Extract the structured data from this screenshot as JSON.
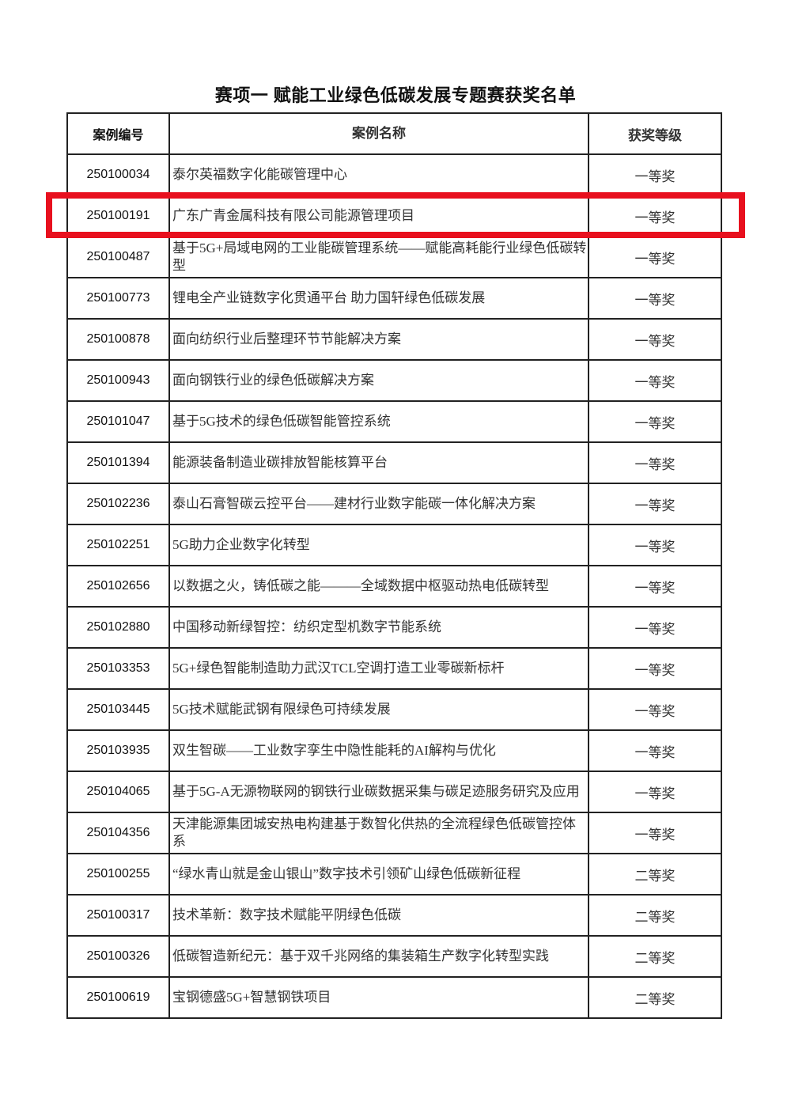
{
  "title": "赛项一  赋能工业绿色低碳发展专题赛获奖名单",
  "headers": [
    "案例编号",
    "案例名称",
    "获奖等级"
  ],
  "highlight_color": "#e8101e",
  "highlighted_row_id": "250100191",
  "rows": [
    {
      "id": "250100034",
      "name": "泰尔英福数字化能碳管理中心",
      "award": "一等奖"
    },
    {
      "id": "250100191",
      "name": "广东广青金属科技有限公司能源管理项目",
      "award": "一等奖"
    },
    {
      "id": "250100487",
      "name": "基于5G+局域电网的工业能碳管理系统——赋能高耗能行业绿色低碳转型",
      "award": "一等奖"
    },
    {
      "id": "250100773",
      "name": "锂电全产业链数字化贯通平台 助力国轩绿色低碳发展",
      "award": "一等奖"
    },
    {
      "id": "250100878",
      "name": "面向纺织行业后整理环节节能解决方案",
      "award": "一等奖"
    },
    {
      "id": "250100943",
      "name": "面向钢铁行业的绿色低碳解决方案",
      "award": "一等奖"
    },
    {
      "id": "250101047",
      "name": "基于5G技术的绿色低碳智能管控系统",
      "award": "一等奖"
    },
    {
      "id": "250101394",
      "name": "能源装备制造业碳排放智能核算平台",
      "award": "一等奖"
    },
    {
      "id": "250102236",
      "name": "泰山石膏智碳云控平台——建材行业数字能碳一体化解决方案",
      "award": "一等奖"
    },
    {
      "id": "250102251",
      "name": "5G助力企业数字化转型",
      "award": "一等奖"
    },
    {
      "id": "250102656",
      "name": "以数据之火，铸低碳之能———全域数据中枢驱动热电低碳转型",
      "award": "一等奖"
    },
    {
      "id": "250102880",
      "name": "中国移动新绿智控：纺织定型机数字节能系统",
      "award": "一等奖"
    },
    {
      "id": "250103353",
      "name": "5G+绿色智能制造助力武汉TCL空调打造工业零碳新标杆",
      "award": "一等奖"
    },
    {
      "id": "250103445",
      "name": "5G技术赋能武钢有限绿色可持续发展",
      "award": "一等奖"
    },
    {
      "id": "250103935",
      "name": "双生智碳——工业数字孪生中隐性能耗的AI解构与优化",
      "award": "一等奖"
    },
    {
      "id": "250104065",
      "name": "基于5G-A无源物联网的钢铁行业碳数据采集与碳足迹服务研究及应用",
      "award": "一等奖"
    },
    {
      "id": "250104356",
      "name": "天津能源集团城安热电构建基于数智化供热的全流程绿色低碳管控体系",
      "award": "一等奖"
    },
    {
      "id": "250100255",
      "name": "“绿水青山就是金山银山”数字技术引领矿山绿色低碳新征程",
      "award": "二等奖"
    },
    {
      "id": "250100317",
      "name": "技术革新：数字技术赋能平阴绿色低碳",
      "award": "二等奖"
    },
    {
      "id": "250100326",
      "name": "低碳智造新纪元：基于双千兆网络的集装箱生产数字化转型实践",
      "award": "二等奖"
    },
    {
      "id": "250100619",
      "name": "宝钢德盛5G+智慧钢铁项目",
      "award": "二等奖"
    }
  ]
}
